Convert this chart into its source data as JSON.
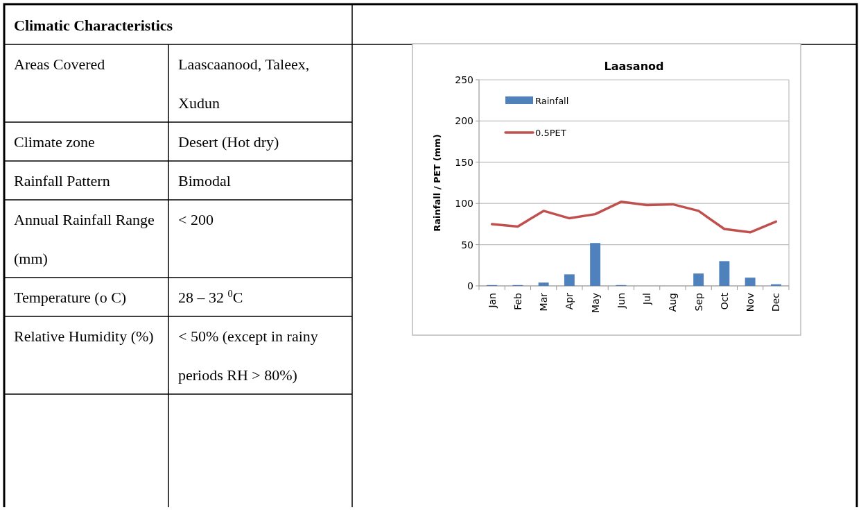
{
  "chart_data": [
    {
      "type": "other",
      "title": "Climatic Characteristics",
      "annotations": [
        "Areas Covered",
        "Laascaanood, Taleex, Xudun",
        "Climate zone",
        "Desert (Hot dry)",
        "Rainfall Pattern",
        "Bimodal",
        "Annual Rainfall Range (mm)",
        "< 200",
        "Temperature (o C)",
        "28 – 32 $^{0}$C",
        "Relative Humidity (%)",
        "< 50% (except in rainy periods RH > 80%)"
      ]
    },
    {
      "type": "bar",
      "title": "Laasanod",
      "ylabel": "Rainfall / PET (mm)",
      "categories": [
        "Jan",
        "Feb",
        "Mar",
        "Apr",
        "May",
        "Jun",
        "Jul",
        "Aug",
        "Sep",
        "Oct",
        "Nov",
        "Dec"
      ],
      "series": [
        {
          "name": "Rainfall",
          "type": "bar",
          "color": "#4f81bd",
          "values": [
            1,
            1,
            4,
            14,
            52,
            1,
            0,
            0,
            15,
            30,
            10,
            2
          ]
        },
        {
          "name": "0.5PET",
          "type": "line",
          "color": "#c0504d",
          "values": [
            75,
            72,
            91,
            82,
            87,
            102,
            98,
            99,
            91,
            69,
            65,
            78
          ]
        }
      ],
      "ylim": [
        0,
        250
      ],
      "yticks": [
        0,
        50,
        100,
        150,
        200,
        250
      ],
      "grid": "y",
      "legend": "top left"
    }
  ]
}
